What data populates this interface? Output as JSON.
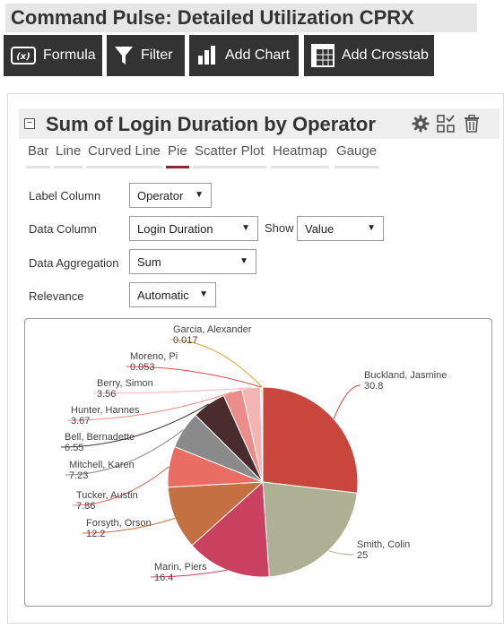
{
  "page": {
    "title": "Command Pulse: Detailed Utilization CPRX"
  },
  "toolbar": {
    "buttons": [
      {
        "label": "Formula",
        "icon": "formula-icon"
      },
      {
        "label": "Filter",
        "icon": "filter-icon"
      },
      {
        "label": "Add Chart",
        "icon": "bar-chart-icon"
      },
      {
        "label": "Add Crosstab",
        "icon": "crosstab-icon"
      }
    ]
  },
  "chart_panel": {
    "title": "Sum of Login Duration by Operator",
    "header_icons": [
      "gear-icon",
      "layout-icon",
      "trash-icon"
    ],
    "tabs": [
      "Bar",
      "Line",
      "Curved Line",
      "Pie",
      "Scatter Plot",
      "Heatmap",
      "Gauge"
    ],
    "active_tab": "Pie",
    "form": {
      "label_column": {
        "label": "Label Column",
        "value": "Operator"
      },
      "data_column": {
        "label": "Data Column",
        "value": "Login Duration"
      },
      "show": {
        "label": "Show",
        "value": "Value"
      },
      "data_aggregation": {
        "label": "Data Aggregation",
        "value": "Sum"
      },
      "relevance": {
        "label": "Relevance",
        "value": "Automatic"
      }
    }
  },
  "chart_data": {
    "type": "pie",
    "title": "",
    "categories": [
      "Buckland, Jasmine",
      "Smith, Colin",
      "Marin, Piers",
      "Forsyth, Orson",
      "Tucker, Austin",
      "Mitchell, Karen",
      "Bell, Bernadette",
      "Hunter, Hannes",
      "Berry, Simon",
      "Moreno, Pi",
      "Garcia, Alexander"
    ],
    "values": [
      30.8,
      25,
      16.4,
      12.2,
      7.86,
      7.23,
      6.55,
      3.67,
      3.56,
      0.053,
      0.017
    ],
    "value_labels": [
      "30.8",
      "25",
      "16.4",
      "12.2",
      "7.86",
      "7.23",
      "6.55",
      "3.67",
      "3.56",
      "0.053",
      "0.017"
    ],
    "colors": [
      "#c9463d",
      "#adb093",
      "#c9415f",
      "#c57042",
      "#e96d62",
      "#8a8a8a",
      "#4a2c2c",
      "#eb8d8b",
      "#f3b5b4",
      "#e04a4a",
      "#e8a030"
    ],
    "legend": "none"
  }
}
